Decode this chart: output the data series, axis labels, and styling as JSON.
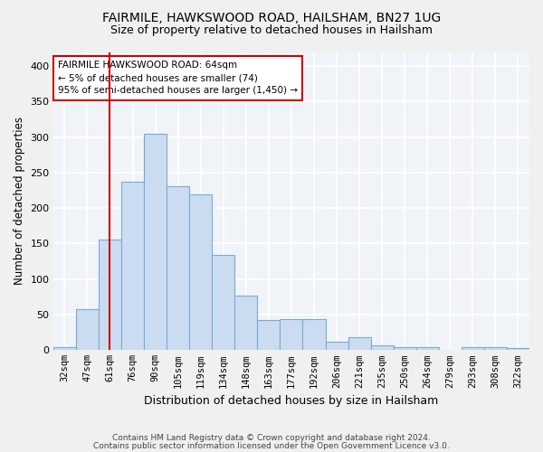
{
  "title1": "FAIRMILE, HAWKSWOOD ROAD, HAILSHAM, BN27 1UG",
  "title2": "Size of property relative to detached houses in Hailsham",
  "xlabel": "Distribution of detached houses by size in Hailsham",
  "ylabel": "Number of detached properties",
  "categories": [
    "32sqm",
    "47sqm",
    "61sqm",
    "76sqm",
    "90sqm",
    "105sqm",
    "119sqm",
    "134sqm",
    "148sqm",
    "163sqm",
    "177sqm",
    "192sqm",
    "206sqm",
    "221sqm",
    "235sqm",
    "250sqm",
    "264sqm",
    "279sqm",
    "293sqm",
    "308sqm",
    "322sqm"
  ],
  "values": [
    4,
    57,
    155,
    237,
    305,
    231,
    219,
    134,
    76,
    42,
    43,
    43,
    12,
    18,
    6,
    4,
    4,
    0,
    4,
    4,
    2
  ],
  "bar_color": "#ccdcf0",
  "bar_edge_color": "#7aaad4",
  "vline_index": 2,
  "vline_color": "#cc0000",
  "annotation_text": "FAIRMILE HAWKSWOOD ROAD: 64sqm\n← 5% of detached houses are smaller (74)\n95% of semi-detached houses are larger (1,450) →",
  "annotation_box_color": "#ffffff",
  "annotation_box_edge": "#cc0000",
  "footer1": "Contains HM Land Registry data © Crown copyright and database right 2024.",
  "footer2": "Contains public sector information licensed under the Open Government Licence v3.0.",
  "ylim": [
    0,
    420
  ],
  "yticks": [
    0,
    50,
    100,
    150,
    200,
    250,
    300,
    350,
    400
  ],
  "bg_color": "#f0f0f0",
  "plot_bg_color": "#f0f4f8",
  "grid_color": "#ffffff",
  "title_fontsize": 10,
  "subtitle_fontsize": 9
}
